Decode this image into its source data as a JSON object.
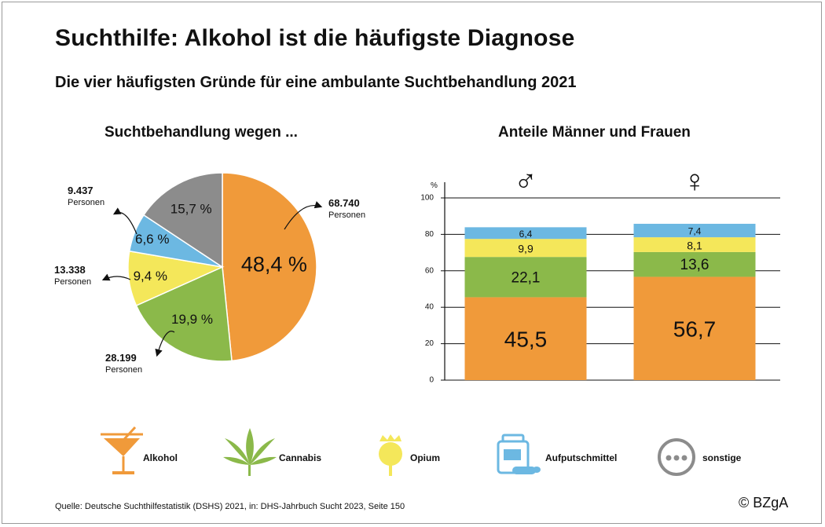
{
  "title": "Suchthilfe: Alkohol ist die häufigste Diagnose",
  "subtitle": "Die vier häufigsten Gründe für eine ambulante Suchtbehandlung 2021",
  "source": "Quelle: Deutsche Suchthilfestatistik (DSHS) 2021, in: DHS-Jahrbuch Sucht 2023, Seite 150",
  "credit": "© BZgA",
  "colors": {
    "Alkohol": "#f09a3a",
    "Cannabis": "#8bb94a",
    "Opium": "#f4e75a",
    "Aufputschmittel": "#6cb8e2",
    "sonstige": "#8c8c8c"
  },
  "legend": [
    {
      "label": "Alkohol",
      "icon": "cocktail-glass-icon"
    },
    {
      "label": "Cannabis",
      "icon": "cannabis-leaf-icon"
    },
    {
      "label": "Opium",
      "icon": "poppy-capsule-icon"
    },
    {
      "label": "Aufputschmittel",
      "icon": "pill-bottle-icon"
    },
    {
      "label": "sonstige",
      "icon": "dots-icon"
    }
  ],
  "chart_data": [
    {
      "type": "pie",
      "title": "Suchtbehandlung wegen ...",
      "slices": [
        {
          "category": "Alkohol",
          "value": 48.4,
          "label": "48,4 %",
          "persons": "68.740",
          "persons_label": "Personen"
        },
        {
          "category": "Cannabis",
          "value": 19.9,
          "label": "19,9 %",
          "persons": "28.199",
          "persons_label": "Personen"
        },
        {
          "category": "Opium",
          "value": 9.4,
          "label": "9,4 %",
          "persons": "13.338",
          "persons_label": "Personen"
        },
        {
          "category": "Aufputschmittel",
          "value": 6.6,
          "label": "6,6 %",
          "persons": "9.437",
          "persons_label": "Personen"
        },
        {
          "category": "sonstige",
          "value": 15.7,
          "label": "15,7 %"
        }
      ]
    },
    {
      "type": "bar",
      "stacked": true,
      "title": "Anteile Männer und Frauen",
      "ylabel": "%",
      "ylim": [
        0,
        100
      ],
      "yticks": [
        0,
        20,
        40,
        60,
        80,
        100
      ],
      "grid": true,
      "categories": [
        "♂",
        "♀"
      ],
      "series": [
        {
          "category": "Alkohol",
          "values": [
            45.5,
            56.7
          ],
          "labels": [
            "45,5",
            "56,7"
          ]
        },
        {
          "category": "Cannabis",
          "values": [
            22.1,
            13.6
          ],
          "labels": [
            "22,1",
            "13,6"
          ]
        },
        {
          "category": "Opium",
          "values": [
            9.9,
            8.1
          ],
          "labels": [
            "9,9",
            "8,1"
          ]
        },
        {
          "category": "Aufputschmittel",
          "values": [
            6.4,
            7.4
          ],
          "labels": [
            "6,4",
            "7,4"
          ]
        }
      ]
    }
  ]
}
